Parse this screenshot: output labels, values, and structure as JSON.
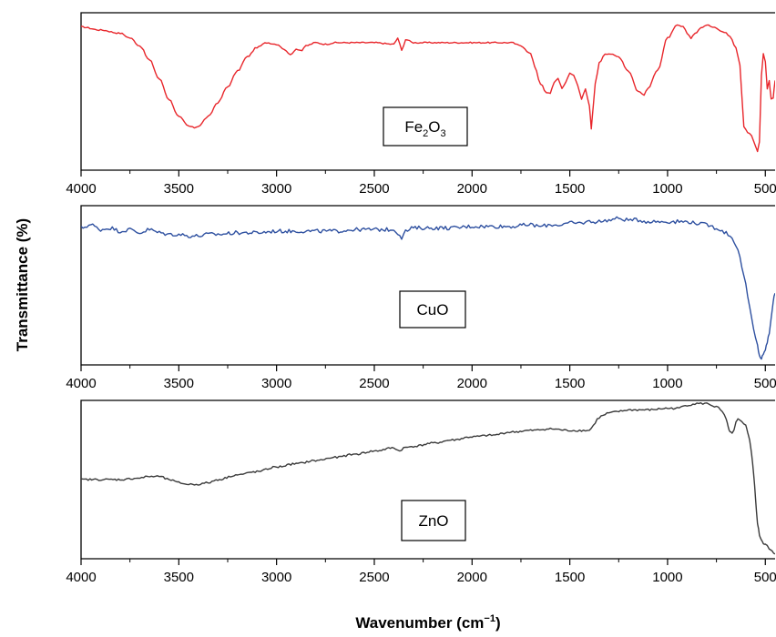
{
  "chart_data": {
    "type": "line",
    "ylabel": "Transmittance (%)",
    "xlabel_main": "Wavenumber (cm",
    "xlabel_sup": "−1",
    "xlabel_close": ")",
    "xlim": [
      4000,
      450
    ],
    "x_ticks": [
      4000,
      3500,
      3000,
      2500,
      2000,
      1500,
      1000,
      500
    ],
    "x_tick_labels": [
      "4000",
      "3500",
      "3000",
      "2500",
      "2000",
      "1500",
      "1000",
      "500"
    ],
    "y_scale": "relative (0 = bottom, 1 = top of panel)",
    "panels": [
      {
        "name": "Fe2O3",
        "label_main": "Fe",
        "label_sub1": "2",
        "label_mid": "O",
        "label_sub2": "3",
        "color": "#e8262b",
        "x": [
          4000,
          3900,
          3800,
          3750,
          3700,
          3650,
          3600,
          3550,
          3500,
          3450,
          3420,
          3400,
          3350,
          3300,
          3250,
          3200,
          3150,
          3100,
          3050,
          3000,
          2950,
          2930,
          2900,
          2870,
          2850,
          2800,
          2750,
          2700,
          2600,
          2500,
          2400,
          2380,
          2360,
          2340,
          2300,
          2200,
          2100,
          2000,
          1900,
          1800,
          1750,
          1700,
          1680,
          1650,
          1620,
          1600,
          1580,
          1560,
          1540,
          1520,
          1500,
          1480,
          1460,
          1440,
          1420,
          1400,
          1390,
          1380,
          1370,
          1350,
          1320,
          1300,
          1250,
          1200,
          1150,
          1120,
          1100,
          1050,
          1000,
          950,
          920,
          900,
          880,
          860,
          820,
          800,
          760,
          720,
          700,
          680,
          650,
          630,
          610,
          590,
          570,
          550,
          540,
          530,
          520,
          510,
          500,
          490,
          480,
          470,
          460,
          450
        ],
        "values": [
          0.91,
          0.89,
          0.87,
          0.84,
          0.79,
          0.7,
          0.58,
          0.45,
          0.34,
          0.28,
          0.27,
          0.28,
          0.34,
          0.43,
          0.53,
          0.63,
          0.72,
          0.78,
          0.81,
          0.8,
          0.76,
          0.73,
          0.77,
          0.76,
          0.79,
          0.81,
          0.8,
          0.81,
          0.81,
          0.81,
          0.8,
          0.84,
          0.76,
          0.83,
          0.81,
          0.81,
          0.81,
          0.81,
          0.81,
          0.81,
          0.79,
          0.74,
          0.66,
          0.55,
          0.49,
          0.49,
          0.56,
          0.58,
          0.52,
          0.56,
          0.62,
          0.6,
          0.54,
          0.45,
          0.52,
          0.41,
          0.26,
          0.41,
          0.55,
          0.68,
          0.74,
          0.74,
          0.72,
          0.63,
          0.5,
          0.48,
          0.52,
          0.64,
          0.84,
          0.92,
          0.91,
          0.87,
          0.84,
          0.87,
          0.91,
          0.92,
          0.91,
          0.88,
          0.87,
          0.85,
          0.78,
          0.67,
          0.28,
          0.24,
          0.22,
          0.15,
          0.12,
          0.18,
          0.6,
          0.74,
          0.69,
          0.52,
          0.57,
          0.45,
          0.46,
          0.57
        ]
      },
      {
        "name": "CuO",
        "label_main": "CuO",
        "color": "#2e50a0",
        "x": [
          4000,
          3950,
          3900,
          3850,
          3800,
          3750,
          3700,
          3650,
          3600,
          3550,
          3500,
          3450,
          3400,
          3350,
          3300,
          3200,
          3100,
          3000,
          2900,
          2800,
          2700,
          2600,
          2500,
          2400,
          2380,
          2360,
          2340,
          2300,
          2200,
          2100,
          2000,
          1900,
          1800,
          1700,
          1650,
          1600,
          1550,
          1500,
          1450,
          1400,
          1350,
          1300,
          1250,
          1200,
          1150,
          1100,
          1050,
          1000,
          950,
          900,
          850,
          800,
          750,
          700,
          680,
          660,
          640,
          620,
          600,
          580,
          560,
          540,
          530,
          520,
          510,
          500,
          490,
          480,
          470,
          460,
          450
        ],
        "values": [
          0.86,
          0.88,
          0.85,
          0.86,
          0.84,
          0.85,
          0.83,
          0.85,
          0.83,
          0.82,
          0.82,
          0.81,
          0.81,
          0.82,
          0.82,
          0.83,
          0.83,
          0.84,
          0.84,
          0.84,
          0.84,
          0.85,
          0.85,
          0.85,
          0.83,
          0.8,
          0.84,
          0.86,
          0.86,
          0.86,
          0.87,
          0.87,
          0.87,
          0.88,
          0.87,
          0.88,
          0.88,
          0.89,
          0.89,
          0.9,
          0.9,
          0.91,
          0.92,
          0.91,
          0.91,
          0.9,
          0.9,
          0.9,
          0.9,
          0.9,
          0.89,
          0.88,
          0.86,
          0.83,
          0.81,
          0.78,
          0.72,
          0.62,
          0.5,
          0.36,
          0.22,
          0.12,
          0.06,
          0.04,
          0.06,
          0.1,
          0.14,
          0.2,
          0.3,
          0.4,
          0.45
        ]
      },
      {
        "name": "ZnO",
        "label_main": "ZnO",
        "color": "#3a3a3a",
        "x": [
          4000,
          3900,
          3800,
          3700,
          3650,
          3600,
          3550,
          3500,
          3450,
          3400,
          3350,
          3300,
          3200,
          3100,
          3000,
          2900,
          2800,
          2700,
          2600,
          2500,
          2400,
          2370,
          2350,
          2300,
          2200,
          2100,
          2000,
          1900,
          1800,
          1700,
          1600,
          1500,
          1450,
          1400,
          1380,
          1360,
          1340,
          1300,
          1250,
          1200,
          1100,
          1000,
          950,
          900,
          850,
          800,
          750,
          720,
          700,
          690,
          680,
          670,
          660,
          650,
          640,
          620,
          600,
          590,
          580,
          570,
          560,
          550,
          540,
          530,
          520,
          510,
          500,
          490,
          480,
          470,
          460,
          450
        ],
        "values": [
          0.5,
          0.5,
          0.5,
          0.51,
          0.52,
          0.52,
          0.5,
          0.48,
          0.47,
          0.47,
          0.48,
          0.5,
          0.53,
          0.55,
          0.58,
          0.6,
          0.62,
          0.64,
          0.66,
          0.68,
          0.7,
          0.68,
          0.7,
          0.71,
          0.73,
          0.75,
          0.77,
          0.78,
          0.8,
          0.81,
          0.82,
          0.81,
          0.81,
          0.81,
          0.84,
          0.88,
          0.9,
          0.92,
          0.93,
          0.94,
          0.94,
          0.95,
          0.95,
          0.97,
          0.98,
          0.98,
          0.96,
          0.93,
          0.88,
          0.83,
          0.8,
          0.79,
          0.81,
          0.86,
          0.88,
          0.87,
          0.84,
          0.8,
          0.75,
          0.66,
          0.54,
          0.38,
          0.22,
          0.15,
          0.12,
          0.1,
          0.09,
          0.08,
          0.06,
          0.05,
          0.04,
          0.03
        ]
      }
    ]
  }
}
